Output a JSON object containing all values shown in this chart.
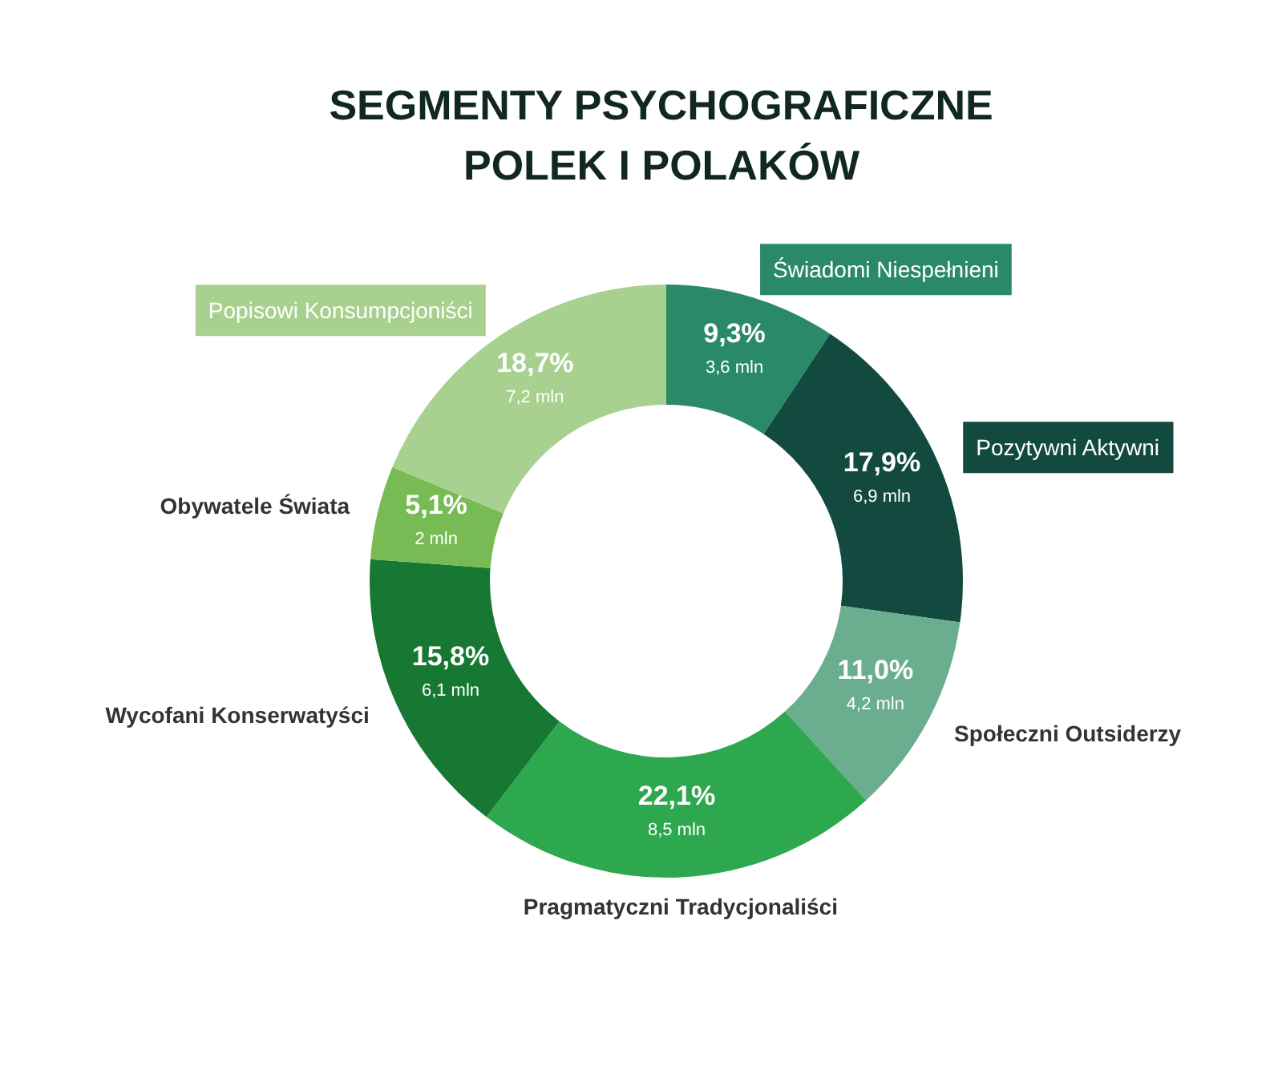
{
  "chart_data": {
    "type": "donut",
    "title": "SEGMENTY PSYCHOGRAFICZNE\nPOLEK I POLAKÓW",
    "categories": [
      "Świadomi Niespełnieni",
      "Pozytywni Aktywni",
      "Społeczni Outsiderzy",
      "Pragmatyczni Tradycjonaliści",
      "Wycofani Konserwatyści",
      "Obywatele Świata",
      "Popisowi Konsumpcjoniści"
    ],
    "values": [
      9.3,
      17.9,
      11.0,
      22.1,
      15.8,
      5.1,
      18.7
    ],
    "colors": [
      "#2a8a68",
      "#124a40",
      "#6aae8f",
      "#2ea84e",
      "#177834",
      "#78bb55",
      "#a8d08e"
    ],
    "value_labels": [
      "9,3%\n3,6 mln",
      "17,9%\n6,9 mln",
      "11,0%\n4,2 mln",
      "22,1%\n8,5 mln",
      "15,8%\n6,1 mln",
      "5,1%\n2 mln",
      "18,7%\n7,2 mln"
    ]
  }
}
